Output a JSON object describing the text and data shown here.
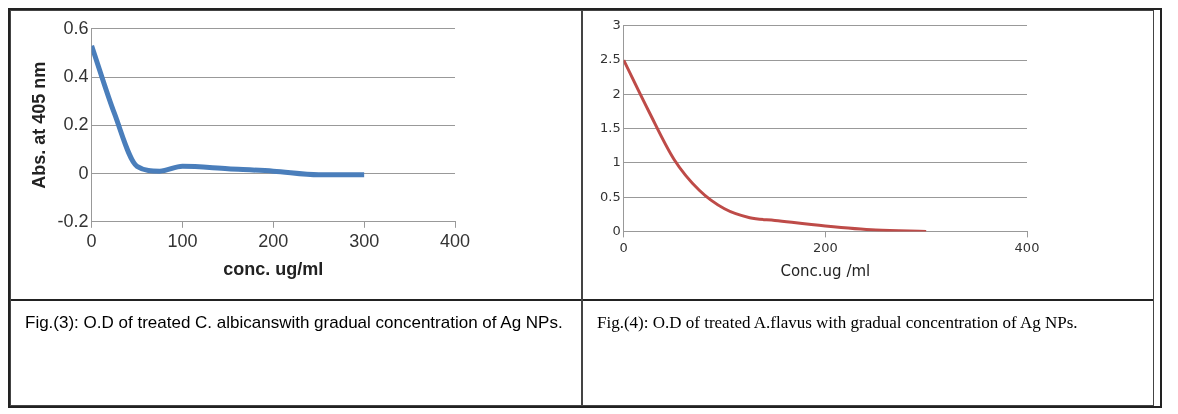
{
  "chart_data": [
    {
      "type": "line",
      "ylabel": "Abs. at 405 nm",
      "xlabel": "conc. ug/ml",
      "x": [
        0,
        25,
        50,
        75,
        100,
        150,
        200,
        250,
        300
      ],
      "series": [
        {
          "color": "#4a7ebb",
          "values": [
            0.53,
            0.25,
            0.03,
            0.01,
            0.03,
            0.02,
            0.01,
            -0.005,
            -0.005
          ]
        }
      ],
      "xlim": [
        0,
        400
      ],
      "xticks": [
        0,
        100,
        200,
        300,
        400
      ],
      "ylim": [
        -0.2,
        0.6
      ],
      "yticks": [
        -0.2,
        0,
        0.2,
        0.4,
        0.6
      ],
      "grid": "y",
      "marker": "none",
      "annotations": [
        "Fig.(3): O.D of treated C. albicanswith gradual concentration of Ag NPs."
      ]
    },
    {
      "type": "line",
      "xlabel": "Conc.ug /ml",
      "x": [
        0,
        25,
        50,
        75,
        100,
        125,
        150,
        200,
        250,
        300
      ],
      "series": [
        {
          "color": "#be4b48",
          "values": [
            2.5,
            1.75,
            1.05,
            0.6,
            0.33,
            0.2,
            0.16,
            0.08,
            0.02,
            0.0
          ]
        }
      ],
      "xlim": [
        0,
        400
      ],
      "xticks": [
        0,
        200,
        400
      ],
      "ylim": [
        0,
        3
      ],
      "yticks": [
        0,
        0.5,
        1,
        1.5,
        2,
        2.5,
        3
      ],
      "grid": "y",
      "marker": "none",
      "annotations": [
        "Fig.(4): O.D of treated A.flavus with gradual concentration of Ag NPs."
      ]
    }
  ]
}
